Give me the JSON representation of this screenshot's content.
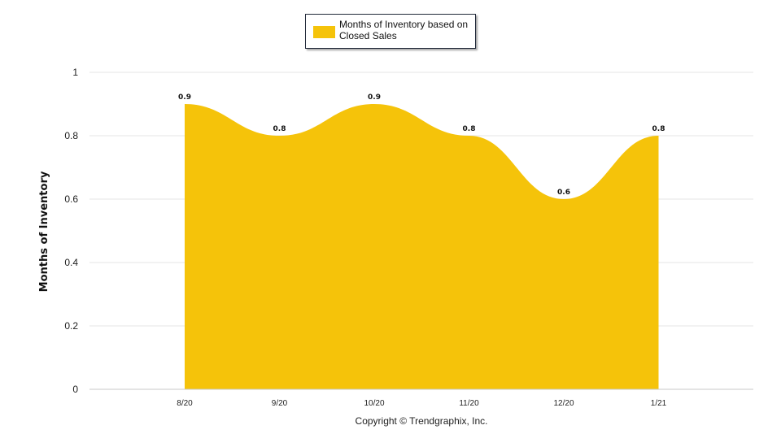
{
  "chart_data": {
    "type": "area",
    "categories": [
      "8/20",
      "9/20",
      "10/20",
      "11/20",
      "12/20",
      "1/21"
    ],
    "series": [
      {
        "name": "Months of Inventory based on Closed Sales",
        "values": [
          0.9,
          0.8,
          0.9,
          0.8,
          0.6,
          0.8
        ],
        "color": "#F5C30A"
      }
    ],
    "data_labels": [
      "0.9",
      "0.8",
      "0.9",
      "0.8",
      "0.6",
      "0.8"
    ],
    "ylabel": "Months of Inventory",
    "ylim": [
      0,
      1
    ],
    "yticks": [
      0,
      0.2,
      0.4,
      0.6,
      0.8,
      1
    ],
    "ytick_labels": [
      "0",
      "0.2",
      "0.4",
      "0.6",
      "0.8",
      "1"
    ],
    "grid": true,
    "legend_position": "top-center"
  },
  "copyright": "Copyright © Trendgraphix, Inc."
}
